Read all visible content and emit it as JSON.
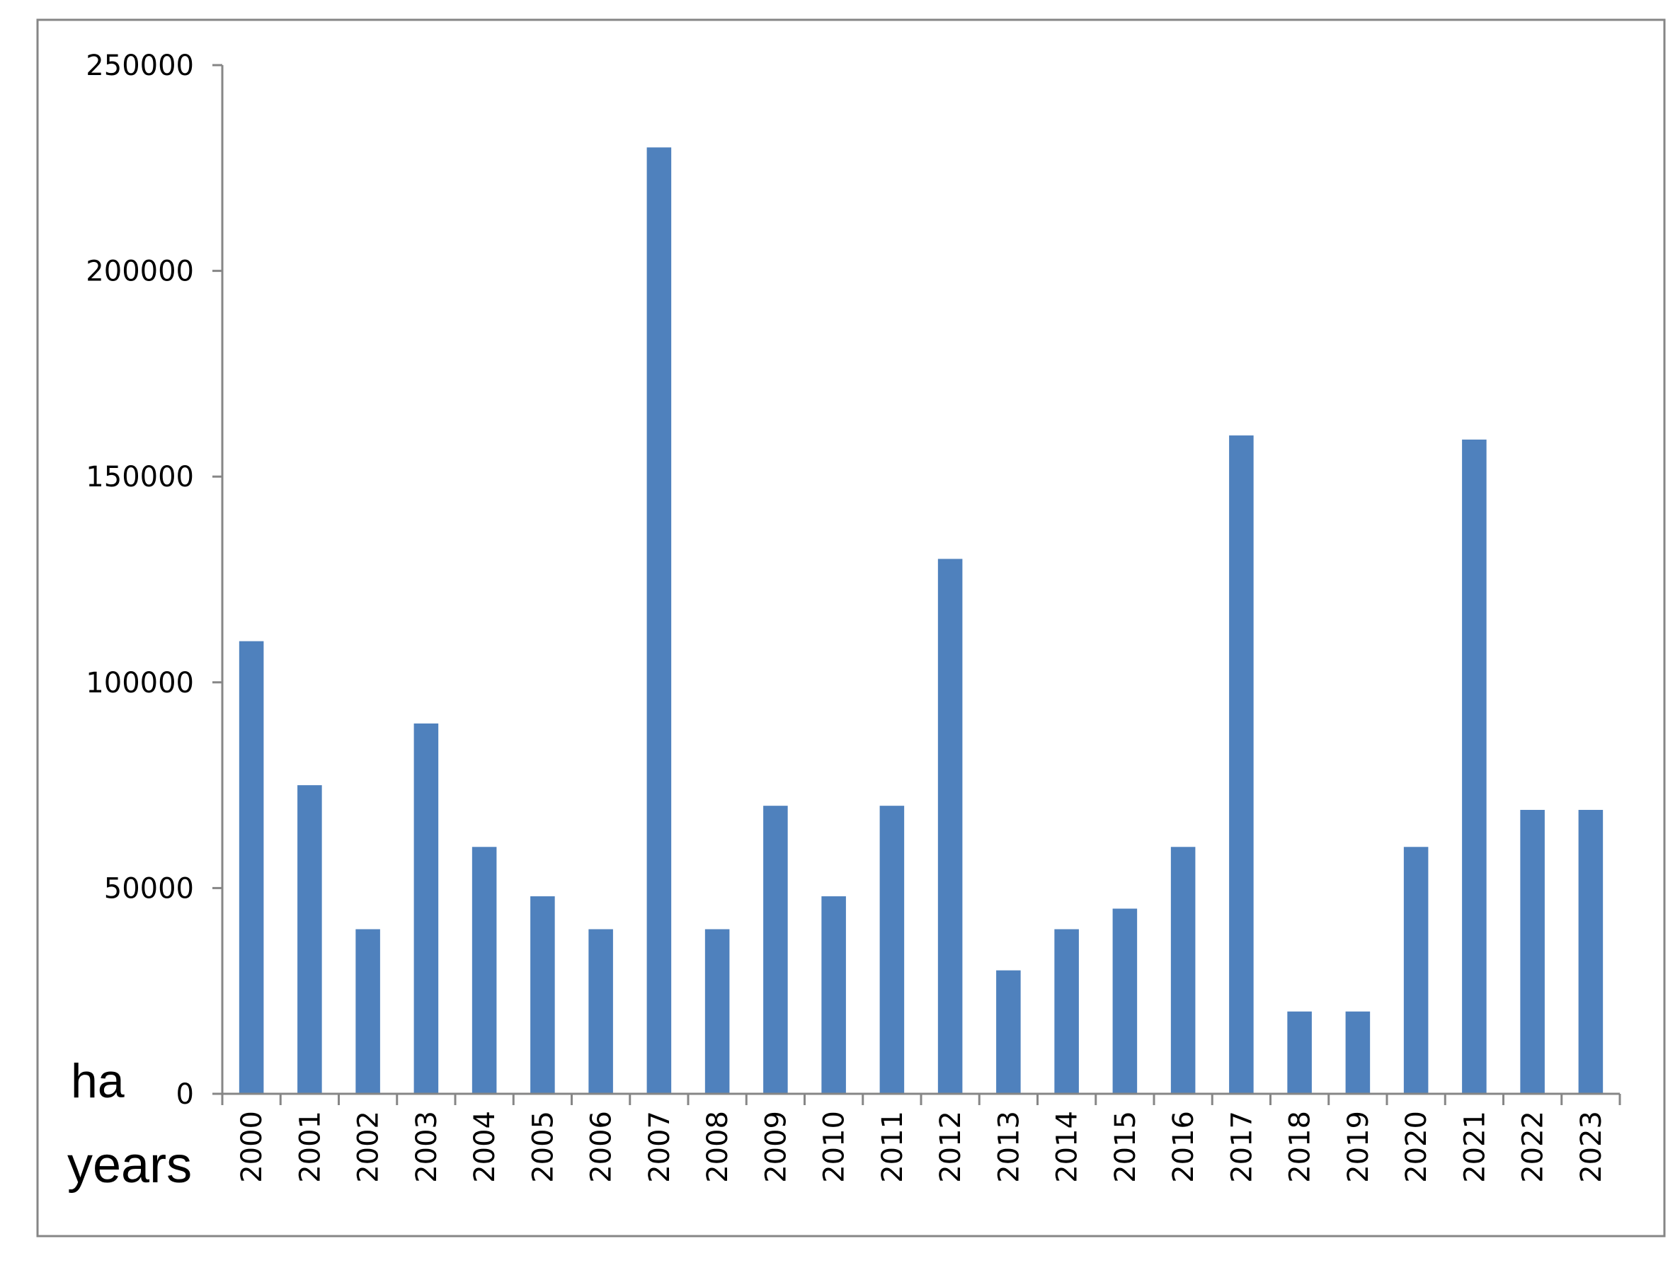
{
  "chart_data": {
    "type": "bar",
    "title": "",
    "xlabel": "years",
    "ylabel": "ha",
    "categories": [
      "2000",
      "2001",
      "2002",
      "2003",
      "2004",
      "2005",
      "2006",
      "2007",
      "2008",
      "2009",
      "2010",
      "2011",
      "2012",
      "2013",
      "2014",
      "2015",
      "2016",
      "2017",
      "2018",
      "2019",
      "2020",
      "2021",
      "2022",
      "2023"
    ],
    "values": [
      110000,
      75000,
      40000,
      90000,
      60000,
      48000,
      40000,
      230000,
      40000,
      70000,
      48000,
      70000,
      130000,
      30000,
      40000,
      45000,
      60000,
      160000,
      20000,
      20000,
      60000,
      159000,
      69000,
      69000
    ],
    "ylim": [
      0,
      250000
    ],
    "yticks": [
      "0",
      "50000",
      "100000",
      "150000",
      "200000",
      "250000"
    ],
    "grid": false,
    "legend": "none",
    "colors": {
      "bar": "#4f81bd",
      "axis": "#868686",
      "frame": "#868686"
    }
  }
}
